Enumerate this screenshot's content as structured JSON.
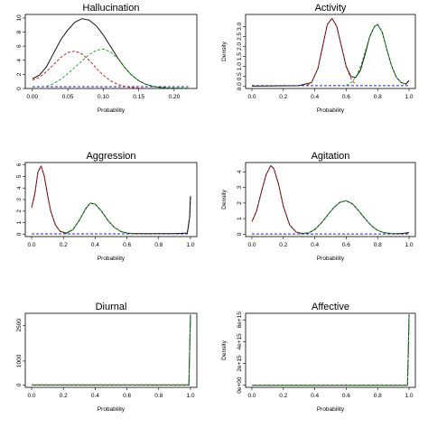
{
  "colors": {
    "total": "#111111",
    "comp1": "#cc2222",
    "comp2": "#22aa22",
    "comp3": "#2222cc"
  },
  "chart_data": [
    {
      "type": "line",
      "title": "Hallucination",
      "xlabel": "Probability",
      "ylabel": "",
      "xlim": [
        -0.01,
        0.232
      ],
      "ylim": [
        0,
        10.5
      ],
      "xticks": [
        0.0,
        0.05,
        0.1,
        0.15,
        0.2
      ],
      "xtick_labels": [
        "0.00",
        "0.05",
        "0.10",
        "0.15",
        "0.20"
      ],
      "yticks": [
        0,
        2,
        4,
        6,
        8,
        10
      ],
      "ytick_labels": [
        "0",
        "2",
        "4",
        "6",
        "8",
        "10"
      ],
      "series": [
        {
          "role": "total",
          "x": [
            0.0,
            0.01,
            0.02,
            0.03,
            0.04,
            0.05,
            0.06,
            0.07,
            0.08,
            0.09,
            0.1,
            0.11,
            0.12,
            0.13,
            0.14,
            0.15,
            0.16,
            0.17,
            0.18,
            0.19,
            0.2,
            0.21,
            0.22
          ],
          "y": [
            1.4,
            1.9,
            3.1,
            5.0,
            6.9,
            8.3,
            9.4,
            9.9,
            9.7,
            8.9,
            7.6,
            6.0,
            4.4,
            3.0,
            1.9,
            1.1,
            0.6,
            0.3,
            0.15,
            0.08,
            0.05,
            0.03,
            0.02
          ]
        },
        {
          "role": "comp1",
          "x": [
            0.0,
            0.01,
            0.02,
            0.03,
            0.04,
            0.05,
            0.06,
            0.07,
            0.08,
            0.09,
            0.1,
            0.11,
            0.12,
            0.13,
            0.14,
            0.15,
            0.16
          ],
          "y": [
            1.2,
            1.6,
            2.4,
            3.4,
            4.4,
            5.1,
            5.3,
            4.9,
            4.0,
            2.9,
            1.9,
            1.1,
            0.6,
            0.3,
            0.12,
            0.05,
            0.02
          ]
        },
        {
          "role": "comp2",
          "x": [
            0.02,
            0.03,
            0.04,
            0.05,
            0.06,
            0.07,
            0.08,
            0.09,
            0.1,
            0.11,
            0.12,
            0.13,
            0.14,
            0.15,
            0.16,
            0.17,
            0.18,
            0.19,
            0.2,
            0.21,
            0.22
          ],
          "y": [
            0.3,
            0.7,
            1.3,
            2.1,
            3.0,
            3.9,
            4.8,
            5.4,
            5.6,
            5.2,
            4.3,
            3.0,
            1.9,
            1.1,
            0.6,
            0.3,
            0.15,
            0.08,
            0.05,
            0.03,
            0.02
          ]
        },
        {
          "role": "comp3",
          "x": [
            0.0,
            0.22
          ],
          "y": [
            0.25,
            0.25
          ]
        }
      ],
      "dashed": [
        "comp1",
        "comp2",
        "comp3"
      ]
    },
    {
      "type": "line",
      "title": "Activity",
      "xlabel": "Probability",
      "ylabel": "Density",
      "xlim": [
        -0.04,
        1.04
      ],
      "ylim": [
        -0.1,
        3.6
      ],
      "xticks": [
        0.0,
        0.2,
        0.4,
        0.6,
        0.8,
        1.0
      ],
      "xtick_labels": [
        "0.0",
        "0.2",
        "0.4",
        "0.6",
        "0.8",
        "1.0"
      ],
      "yticks": [
        0.0,
        0.5,
        1.0,
        1.5,
        2.0,
        2.5,
        3.0
      ],
      "ytick_labels": [
        "0.0",
        "0.5",
        "1.0",
        "1.5",
        "2.0",
        "2.5",
        "3.0"
      ],
      "series": [
        {
          "role": "total",
          "x": [
            0.0,
            0.3,
            0.38,
            0.42,
            0.45,
            0.48,
            0.51,
            0.54,
            0.57,
            0.6,
            0.63,
            0.66,
            0.69,
            0.72,
            0.75,
            0.78,
            0.8,
            0.83,
            0.86,
            0.89,
            0.92,
            0.95,
            0.98,
            1.0
          ],
          "y": [
            0.02,
            0.04,
            0.2,
            0.9,
            2.0,
            3.1,
            3.4,
            3.0,
            2.0,
            1.0,
            0.5,
            0.45,
            0.8,
            1.6,
            2.5,
            3.0,
            3.1,
            2.7,
            1.8,
            1.0,
            0.45,
            0.2,
            0.12,
            0.3
          ]
        },
        {
          "role": "comp1",
          "x": [
            0.35,
            0.38,
            0.42,
            0.45,
            0.48,
            0.51,
            0.54,
            0.57,
            0.6,
            0.63,
            0.66
          ],
          "y": [
            0.05,
            0.2,
            0.9,
            2.0,
            3.1,
            3.4,
            3.0,
            2.0,
            1.0,
            0.4,
            0.1
          ]
        },
        {
          "role": "comp2",
          "x": [
            0.6,
            0.64,
            0.67,
            0.7,
            0.73,
            0.76,
            0.78,
            0.8,
            0.83,
            0.86,
            0.89,
            0.92,
            0.95,
            0.98
          ],
          "y": [
            0.05,
            0.25,
            0.6,
            1.2,
            2.0,
            2.7,
            3.0,
            3.1,
            2.7,
            1.8,
            1.0,
            0.45,
            0.2,
            0.1
          ]
        },
        {
          "role": "comp3",
          "x": [
            0.0,
            1.0
          ],
          "y": [
            0.04,
            0.04
          ]
        }
      ],
      "dashed": [
        "comp1",
        "comp2",
        "comp3"
      ]
    },
    {
      "type": "line",
      "title": "Aggression",
      "xlabel": "Probability",
      "ylabel": "",
      "xlim": [
        -0.04,
        1.04
      ],
      "ylim": [
        -0.2,
        6.2
      ],
      "xticks": [
        0.0,
        0.2,
        0.4,
        0.6,
        0.8,
        1.0
      ],
      "xtick_labels": [
        "0.0",
        "0.2",
        "0.4",
        "0.6",
        "0.8",
        "1.0"
      ],
      "yticks": [
        0,
        1,
        2,
        3,
        4,
        5,
        6
      ],
      "ytick_labels": [
        "0",
        "1",
        "2",
        "3",
        "4",
        "5",
        "6"
      ],
      "series": [
        {
          "role": "total",
          "x": [
            0.0,
            0.02,
            0.04,
            0.06,
            0.08,
            0.1,
            0.12,
            0.15,
            0.18,
            0.22,
            0.26,
            0.3,
            0.34,
            0.37,
            0.4,
            0.44,
            0.48,
            0.52,
            0.56,
            0.6,
            0.65,
            0.7,
            0.8,
            0.9,
            0.98,
            0.995,
            1.0
          ],
          "y": [
            2.3,
            3.5,
            5.4,
            5.9,
            5.0,
            3.4,
            2.0,
            0.8,
            0.25,
            0.1,
            0.4,
            1.2,
            2.2,
            2.7,
            2.6,
            2.0,
            1.2,
            0.6,
            0.25,
            0.1,
            0.05,
            0.05,
            0.05,
            0.05,
            0.1,
            1.5,
            3.3
          ]
        },
        {
          "role": "comp1",
          "x": [
            0.0,
            0.02,
            0.04,
            0.06,
            0.08,
            0.1,
            0.12,
            0.15,
            0.18,
            0.22
          ],
          "y": [
            2.3,
            3.5,
            5.4,
            5.9,
            5.0,
            3.4,
            2.0,
            0.8,
            0.25,
            0.05
          ]
        },
        {
          "role": "comp2",
          "x": [
            0.2,
            0.26,
            0.3,
            0.34,
            0.37,
            0.4,
            0.44,
            0.48,
            0.52,
            0.56,
            0.6,
            0.65
          ],
          "y": [
            0.05,
            0.4,
            1.2,
            2.2,
            2.7,
            2.6,
            2.0,
            1.2,
            0.6,
            0.25,
            0.1,
            0.03
          ]
        },
        {
          "role": "comp3",
          "x": [
            0.0,
            0.98,
            0.995,
            1.0
          ],
          "y": [
            0.03,
            0.03,
            1.5,
            3.3
          ]
        }
      ],
      "dashed": [
        "comp1",
        "comp2",
        "comp3"
      ]
    },
    {
      "type": "line",
      "title": "Agitation",
      "xlabel": "Probability",
      "ylabel": "Density",
      "xlim": [
        -0.04,
        1.04
      ],
      "ylim": [
        -0.15,
        4.6
      ],
      "xticks": [
        0.0,
        0.2,
        0.4,
        0.6,
        0.8,
        1.0
      ],
      "xtick_labels": [
        "0.0",
        "0.2",
        "0.4",
        "0.6",
        "0.8",
        "1.0"
      ],
      "yticks": [
        0,
        1,
        2,
        3,
        4
      ],
      "ytick_labels": [
        "0",
        "1",
        "2",
        "3",
        "4"
      ],
      "series": [
        {
          "role": "total",
          "x": [
            0.0,
            0.03,
            0.06,
            0.09,
            0.12,
            0.14,
            0.17,
            0.2,
            0.24,
            0.28,
            0.32,
            0.36,
            0.4,
            0.44,
            0.48,
            0.52,
            0.56,
            0.6,
            0.64,
            0.68,
            0.72,
            0.76,
            0.8,
            0.84,
            0.88,
            0.92,
            0.96,
            1.0
          ],
          "y": [
            0.8,
            1.5,
            2.7,
            3.8,
            4.4,
            4.2,
            3.2,
            1.8,
            0.6,
            0.15,
            0.05,
            0.08,
            0.3,
            0.7,
            1.2,
            1.7,
            2.05,
            2.15,
            1.95,
            1.5,
            1.0,
            0.55,
            0.25,
            0.1,
            0.05,
            0.03,
            0.05,
            0.1
          ]
        },
        {
          "role": "comp1",
          "x": [
            0.0,
            0.03,
            0.06,
            0.09,
            0.12,
            0.14,
            0.17,
            0.2,
            0.24,
            0.28,
            0.32
          ],
          "y": [
            0.8,
            1.5,
            2.7,
            3.8,
            4.4,
            4.2,
            3.2,
            1.8,
            0.6,
            0.15,
            0.03
          ]
        },
        {
          "role": "comp2",
          "x": [
            0.3,
            0.36,
            0.4,
            0.44,
            0.48,
            0.52,
            0.56,
            0.6,
            0.64,
            0.68,
            0.72,
            0.76,
            0.8,
            0.84,
            0.88,
            0.92
          ],
          "y": [
            0.02,
            0.08,
            0.3,
            0.7,
            1.2,
            1.7,
            2.05,
            2.15,
            1.95,
            1.5,
            1.0,
            0.55,
            0.25,
            0.1,
            0.05,
            0.03
          ]
        },
        {
          "role": "comp3",
          "x": [
            0.0,
            1.0
          ],
          "y": [
            0.02,
            0.02
          ]
        }
      ],
      "dashed": [
        "comp1",
        "comp2",
        "comp3"
      ]
    },
    {
      "type": "line",
      "title": "Diurnal",
      "xlabel": "Probability",
      "ylabel": "",
      "xlim": [
        -0.04,
        1.04
      ],
      "ylim": [
        -100,
        3000
      ],
      "xticks": [
        0.0,
        0.2,
        0.4,
        0.6,
        0.8,
        1.0
      ],
      "xtick_labels": [
        "0.0",
        "0.2",
        "0.4",
        "0.6",
        "0.8",
        "1.0"
      ],
      "yticks": [
        0,
        1000,
        2500
      ],
      "ytick_labels": [
        "0",
        "1000",
        "2500"
      ],
      "series": [
        {
          "role": "total",
          "x": [
            0.0,
            0.99,
            0.995,
            1.0
          ],
          "y": [
            0,
            0,
            1500,
            2950
          ]
        },
        {
          "role": "comp1",
          "x": [
            0.0,
            0.99
          ],
          "y": [
            5,
            5
          ]
        },
        {
          "role": "comp2",
          "x": [
            0.0,
            0.99,
            0.995,
            1.0
          ],
          "y": [
            0,
            0,
            1500,
            2950
          ]
        },
        {
          "role": "comp3",
          "x": [
            0.0,
            0.99,
            0.995,
            1.0
          ],
          "y": [
            0,
            0,
            1500,
            2950
          ]
        }
      ],
      "dashed": [
        "comp1",
        "comp2",
        "comp3"
      ]
    },
    {
      "type": "line",
      "title": "Affective",
      "xlabel": "Probability",
      "ylabel": "Density",
      "xlim": [
        -0.04,
        1.04
      ],
      "ylim": [
        -200000000000000.0,
        6600000000000000.0
      ],
      "xticks": [
        0.0,
        0.2,
        0.4,
        0.6,
        0.8,
        1.0
      ],
      "xtick_labels": [
        "0.0",
        "0.2",
        "0.4",
        "0.6",
        "0.8",
        "1.0"
      ],
      "yticks": [
        0,
        2000000000000000.0,
        4000000000000000.0,
        6000000000000000.0
      ],
      "ytick_labels": [
        "0e+00",
        "2e+15",
        "4e+15",
        "6e+15"
      ],
      "series": [
        {
          "role": "total",
          "x": [
            0.0,
            0.99,
            0.995,
            1.0
          ],
          "y": [
            0,
            0,
            3000000000000000.0,
            6500000000000000.0
          ]
        },
        {
          "role": "comp1",
          "x": [
            0.0,
            0.99
          ],
          "y": [
            10000000000000.0,
            10000000000000.0
          ]
        },
        {
          "role": "comp2",
          "x": [
            0.0,
            0.99,
            0.995,
            1.0
          ],
          "y": [
            0,
            0,
            3000000000000000.0,
            6500000000000000.0
          ]
        },
        {
          "role": "comp3",
          "x": [
            0.0,
            0.99,
            0.995,
            1.0
          ],
          "y": [
            0,
            0,
            3000000000000000.0,
            6500000000000000.0
          ]
        }
      ],
      "dashed": [
        "comp1",
        "comp2",
        "comp3"
      ]
    }
  ]
}
